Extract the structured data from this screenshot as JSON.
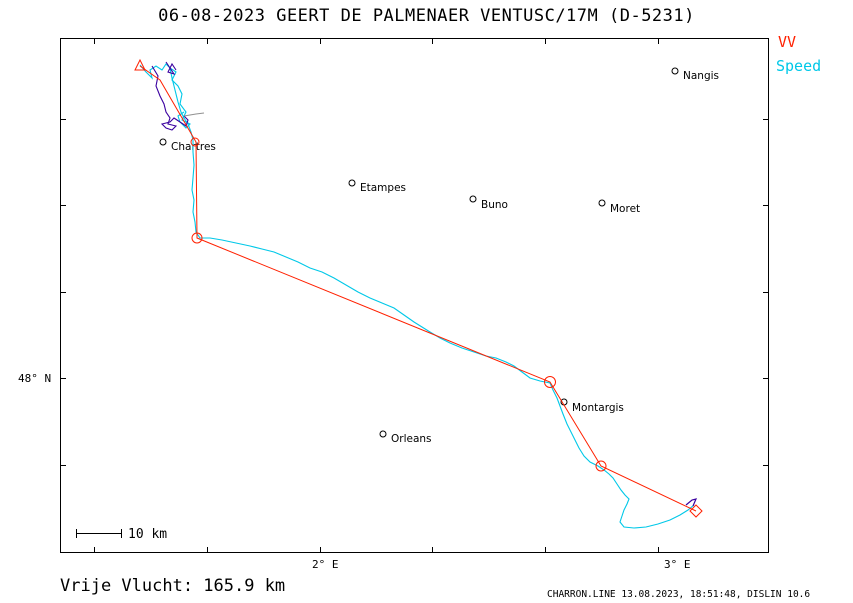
{
  "header": {
    "title": "06-08-2023   GEERT DE PALMENAER   VENTUSC/17M (D-5231)"
  },
  "legend": {
    "vv_label": "VV",
    "vv_color": "#ff2000",
    "speed_label": "Speed",
    "speed_color": "#00c8e8",
    "track_alt_color": "#3a00a0"
  },
  "axes": {
    "lat_label": "48° N",
    "lon_label_2": "2° E",
    "lon_label_3": "3° E"
  },
  "scale_bar": {
    "label": "10  km"
  },
  "towns": [
    {
      "name": "Nangis"
    },
    {
      "name": "Chartres"
    },
    {
      "name": "Etampes"
    },
    {
      "name": "Buno"
    },
    {
      "name": "Moret"
    },
    {
      "name": "Montargis"
    },
    {
      "name": "Orleans"
    }
  ],
  "footer": {
    "distance": "Vrije Vlucht:  165.9 km",
    "credit": "CHARRON.LINE 13.08.2023, 18:51:48, DISLIN 10.6"
  }
}
